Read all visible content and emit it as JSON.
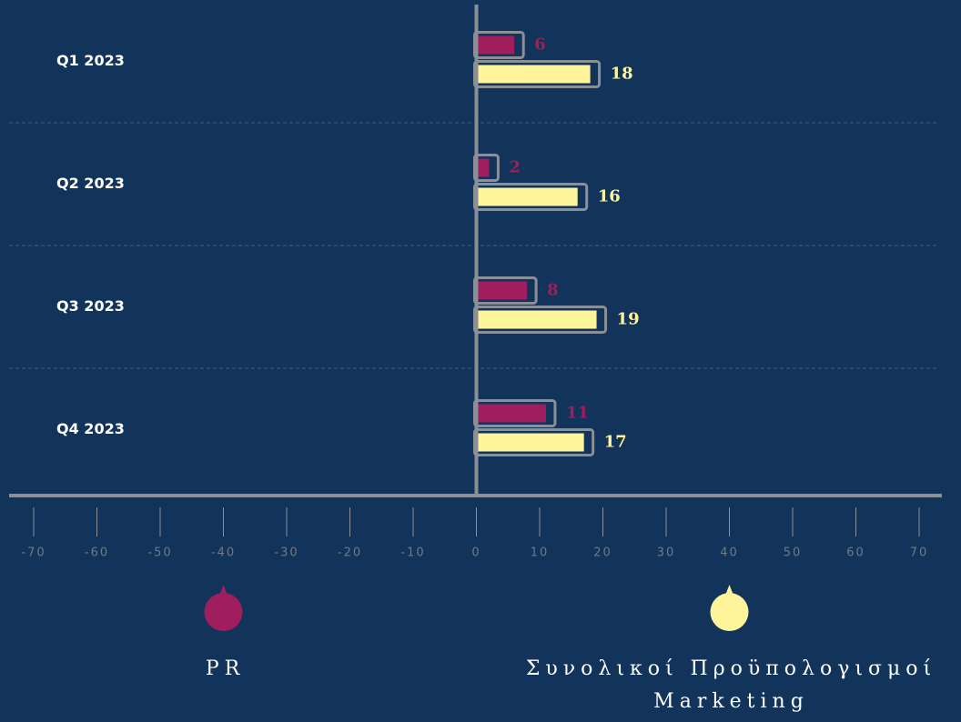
{
  "chart_data": {
    "type": "bar",
    "orientation": "horizontal",
    "categories": [
      "Q1 2023",
      "Q2 2023",
      "Q3 2023",
      "Q4 2023"
    ],
    "series": [
      {
        "name": "PR",
        "color": "#a01e5e",
        "values": [
          6,
          2,
          8,
          11
        ]
      },
      {
        "name": "Συνολικοί Προϋπολογισμοί Marketing",
        "color": "#fef59a",
        "values": [
          18,
          16,
          19,
          17
        ]
      }
    ],
    "xlim": [
      -70,
      70
    ],
    "xticks": [
      -70,
      -60,
      -50,
      -40,
      -30,
      -20,
      -10,
      0,
      10,
      20,
      30,
      40,
      50,
      60,
      70
    ],
    "legend": "bottom"
  }
}
